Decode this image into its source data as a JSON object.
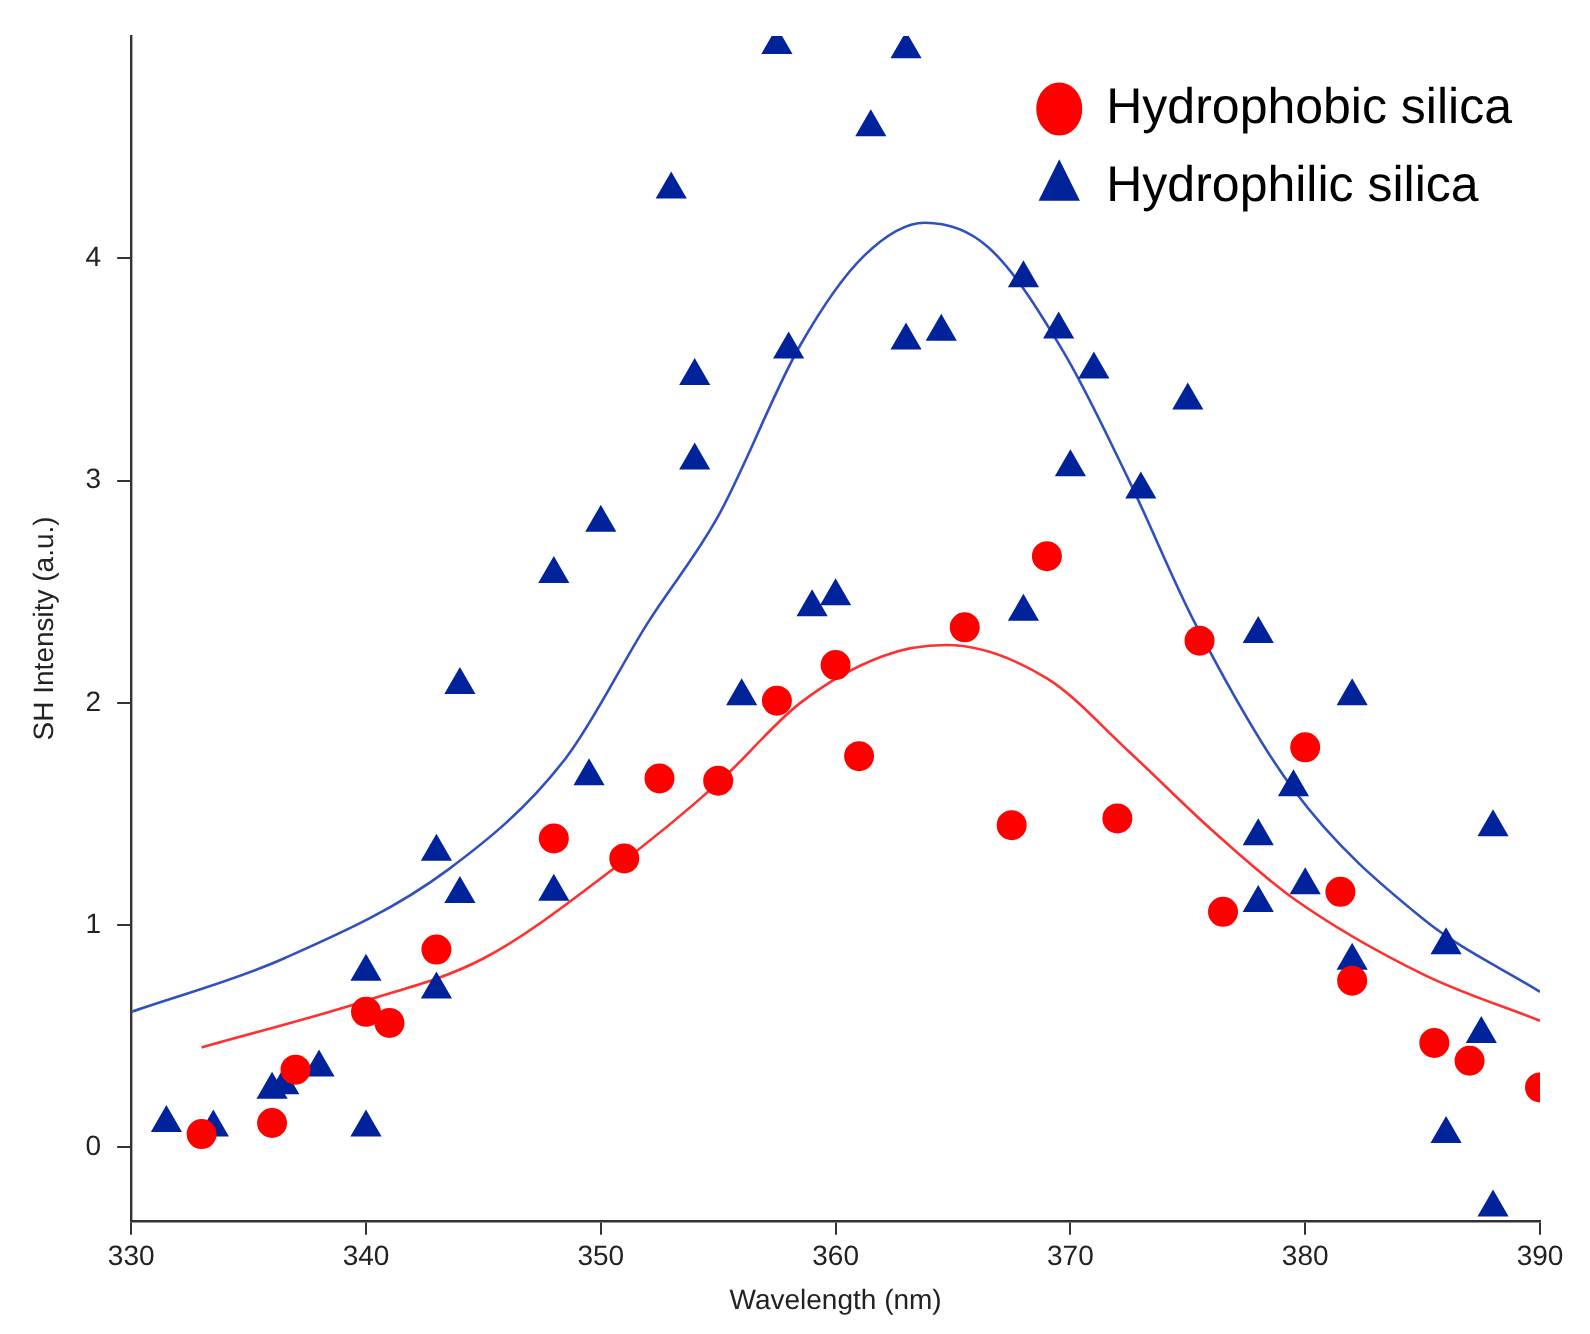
{
  "chart_data": {
    "type": "scatter",
    "xlabel": "Wavelength (nm)",
    "ylabel": "SH Intensity (a.u.)",
    "xlim": [
      330,
      390
    ],
    "xticks": [
      330,
      340,
      350,
      360,
      370,
      380,
      390
    ],
    "ylim": [
      -0.33,
      5.0
    ],
    "yticks": [
      0,
      1,
      2,
      3,
      4
    ],
    "grid": false,
    "legend": "top right",
    "series": [
      {
        "name": "Hydrophobic silica",
        "marker": "circle",
        "color": "#ff0000",
        "x": [
          333,
          336,
          337,
          340,
          341,
          343,
          348,
          351,
          352.5,
          355,
          357.5,
          360,
          361,
          365.5,
          367.5,
          369,
          372,
          375.5,
          376.5,
          380,
          381.5,
          382,
          385.5,
          387,
          390
        ],
        "values": [
          0.06,
          0.11,
          0.35,
          0.61,
          0.56,
          0.89,
          1.39,
          1.3,
          1.66,
          1.65,
          2.01,
          2.17,
          1.76,
          2.34,
          1.45,
          2.66,
          1.48,
          2.28,
          1.06,
          1.8,
          1.15,
          0.75,
          0.47,
          0.39,
          0.27
        ]
      },
      {
        "name": "Hydrophilic silica",
        "marker": "triangle",
        "color": "#00239c",
        "x": [
          331.5,
          333.5,
          336,
          336.5,
          338,
          340,
          340,
          343,
          343,
          344,
          344,
          348,
          348,
          349.5,
          350,
          353,
          354,
          354,
          356,
          357.5,
          363,
          361.5,
          358,
          363,
          364.5,
          368,
          369.5,
          371,
          375,
          370,
          373,
          359,
          360,
          368,
          378,
          382,
          379.5,
          378,
          380,
          378,
          388,
          382,
          386,
          387.5,
          386,
          388
        ],
        "values": [
          0.11,
          0.09,
          0.26,
          0.28,
          0.36,
          0.09,
          0.79,
          0.71,
          1.33,
          1.14,
          2.08,
          1.15,
          2.58,
          1.67,
          2.81,
          4.31,
          3.47,
          3.09,
          2.03,
          4.96,
          4.94,
          4.59,
          3.59,
          3.63,
          3.67,
          3.91,
          3.68,
          3.5,
          3.36,
          3.06,
          2.96,
          2.43,
          2.48,
          2.41,
          2.31,
          2.03,
          1.62,
          1.4,
          1.18,
          1.1,
          1.44,
          0.84,
          0.91,
          0.51,
          0.06,
          -0.27
        ]
      },
      {
        "type": "line",
        "marker": "none",
        "color": "#ff3030",
        "x": [
          333,
          340,
          345,
          350.5,
          355,
          358.5,
          362,
          364.7,
          369,
          372.5,
          376,
          379.5,
          385,
          390
        ],
        "values": [
          0.45,
          0.66,
          0.85,
          1.25,
          1.64,
          2.0,
          2.21,
          2.26,
          2.11,
          1.78,
          1.43,
          1.12,
          0.78,
          0.57
        ]
      },
      {
        "type": "line",
        "marker": "none",
        "color": "#3050c0",
        "x": [
          330,
          336.5,
          343.5,
          348.5,
          352,
          355,
          358.5,
          361.2,
          363.8,
          366.5,
          369.7,
          372.5,
          375.3,
          379.5,
          385,
          390
        ],
        "values": [
          0.61,
          0.85,
          1.25,
          1.75,
          2.36,
          2.84,
          3.61,
          4.01,
          4.16,
          4.05,
          3.58,
          3.0,
          2.36,
          1.61,
          1.03,
          0.7
        ]
      }
    ]
  }
}
